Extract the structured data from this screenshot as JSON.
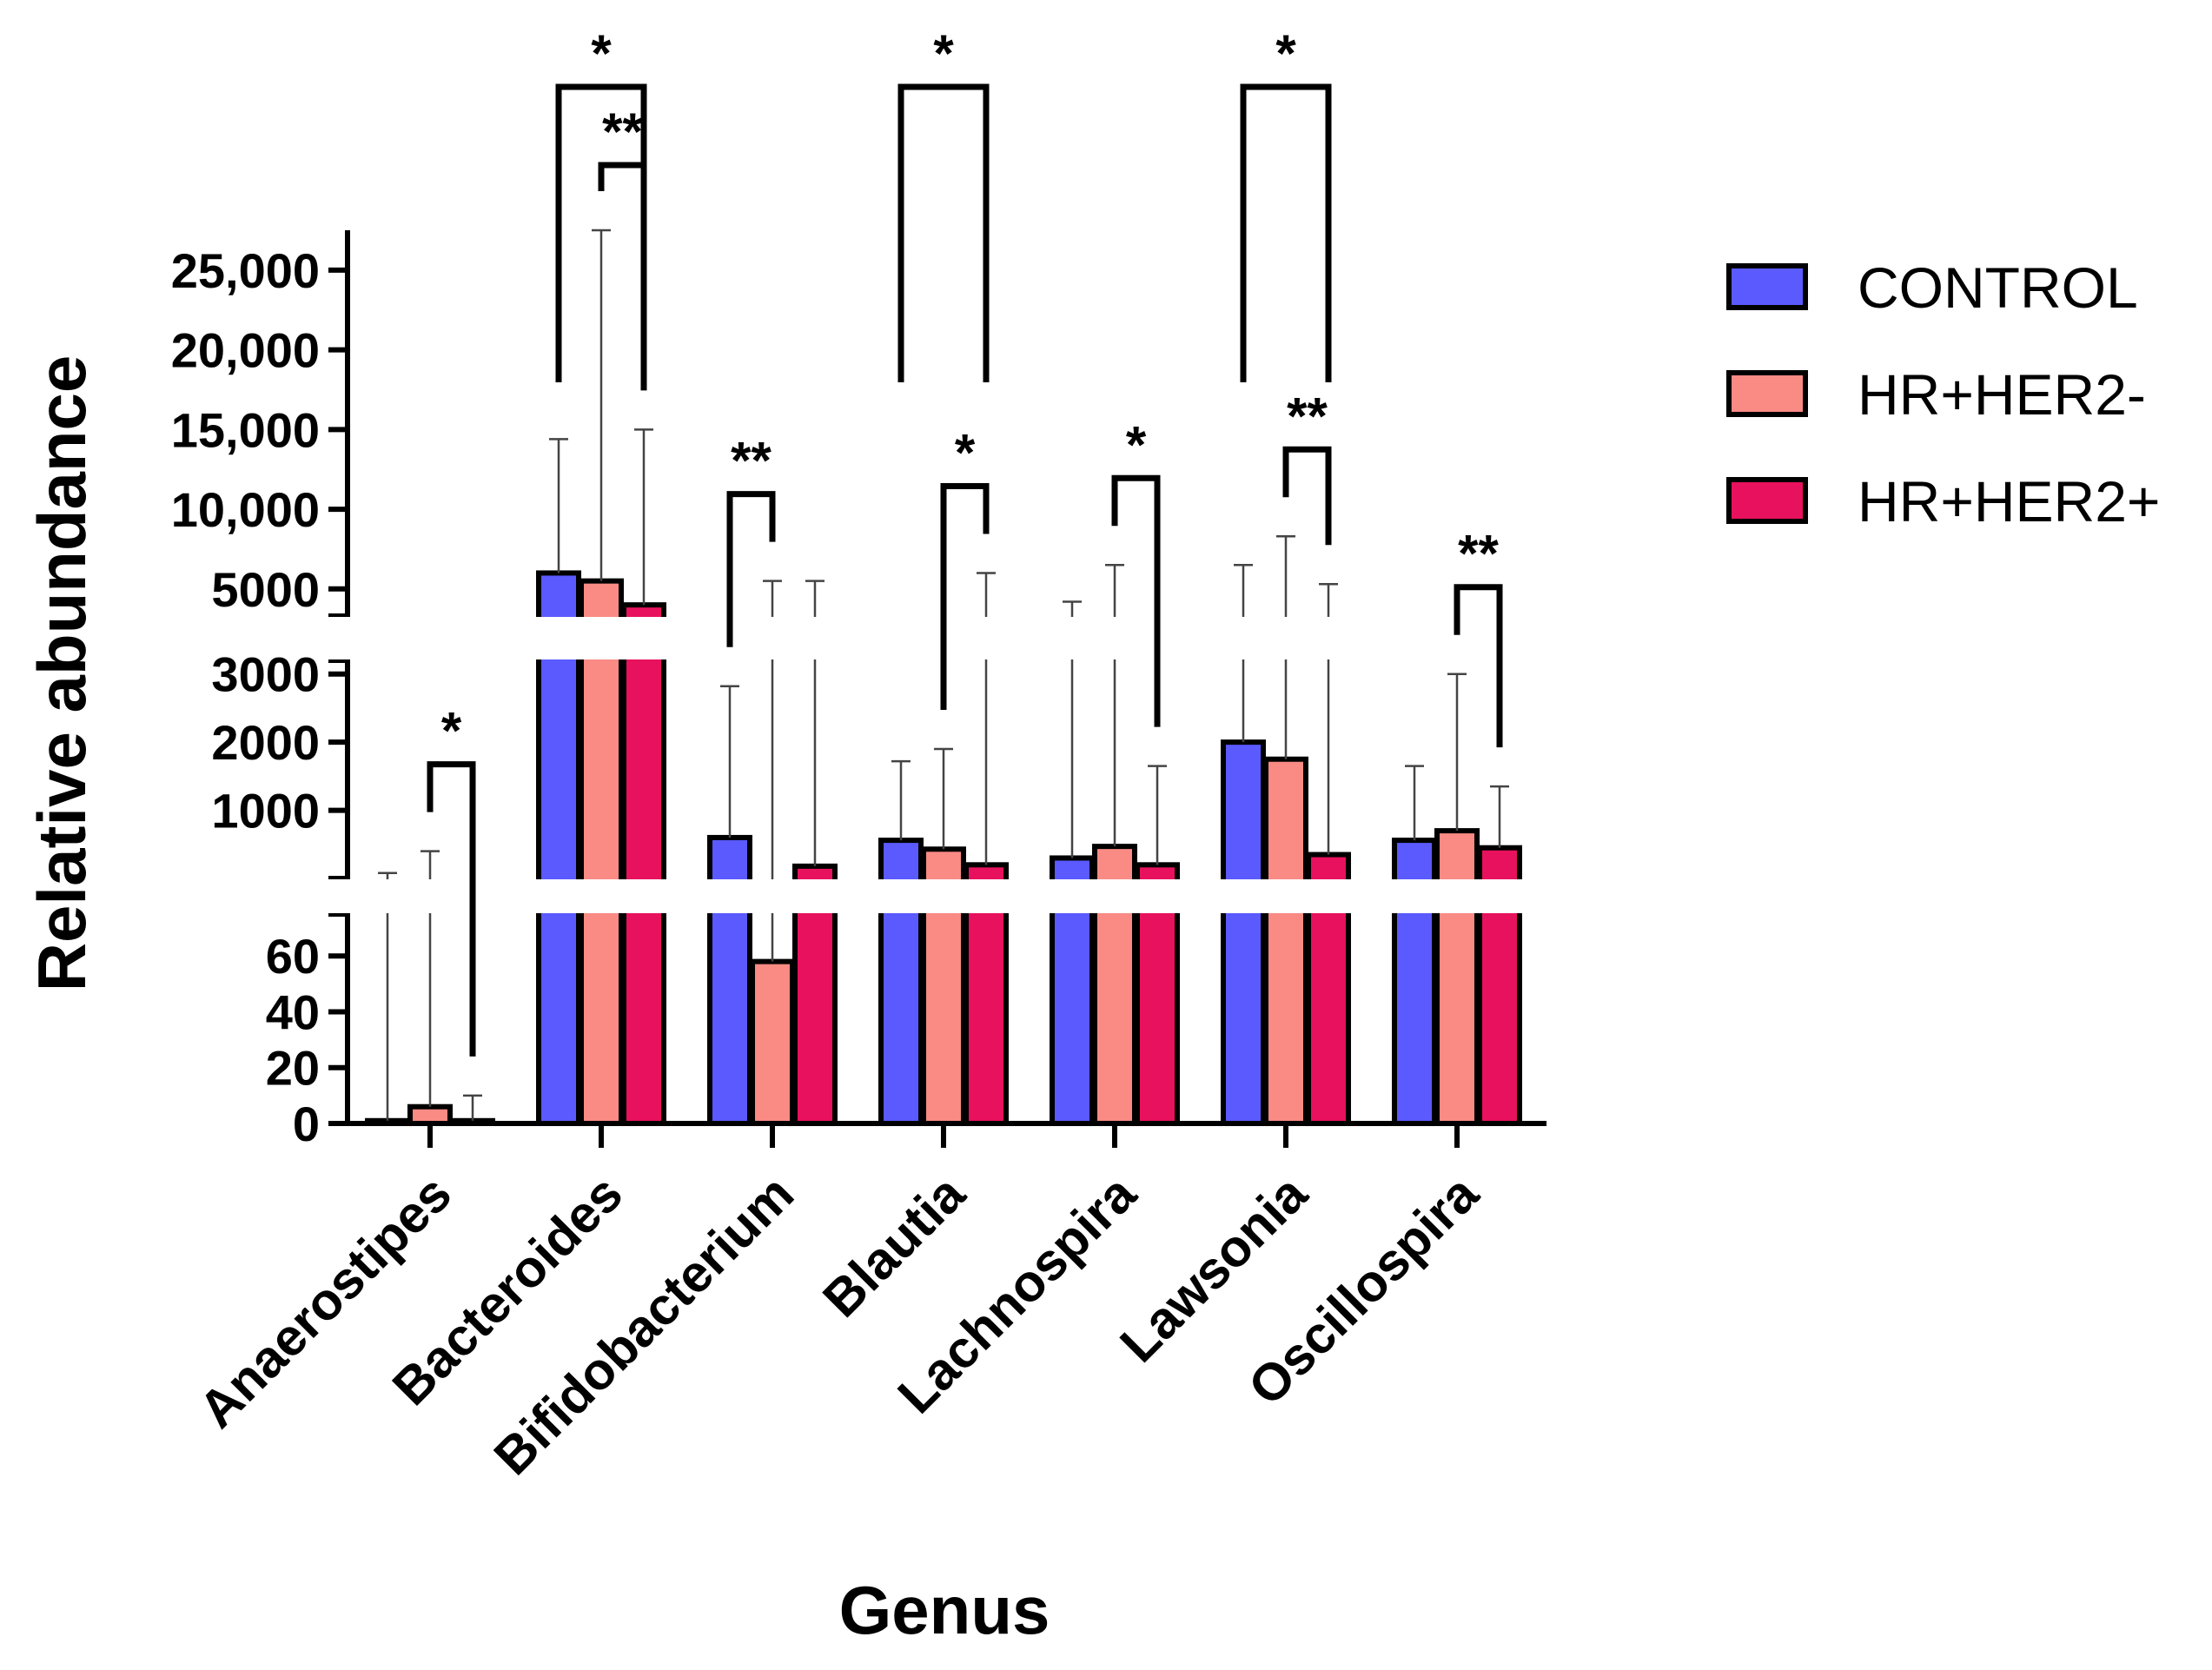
{
  "chart_data": {
    "type": "bar",
    "xlabel": "Genus",
    "ylabel": "Relative abundance",
    "categories": [
      "Anaerostipes",
      "Bacteroides",
      "Bifidobacterium",
      "Blautia",
      "Lachnospira",
      "Lawsonia",
      "Oscillospira"
    ],
    "series": [
      {
        "name": "CONTROL",
        "color": "#5a5aff",
        "values": [
          1,
          6000,
          600,
          560,
          300,
          2000,
          560
        ],
        "error_upper": [
          80,
          14400,
          2820,
          1720,
          4200,
          6500,
          1650
        ]
      },
      {
        "name": "HR+HER2-",
        "color": "#f98a84",
        "values": [
          6,
          5500,
          58,
          430,
          470,
          1750,
          700
        ],
        "error_upper": [
          400,
          27800,
          5500,
          1900,
          6500,
          8300,
          3000
        ]
      },
      {
        "name": "HR+HER2+",
        "color": "#e8115d",
        "values": [
          1,
          4000,
          180,
          200,
          200,
          350,
          450
        ],
        "error_upper": [
          10,
          15000,
          5500,
          6000,
          1650,
          5300,
          1350
        ]
      }
    ],
    "y_segments": [
      {
        "range": [
          0,
          75
        ],
        "ticks": [
          0,
          20,
          40,
          60
        ],
        "tick_labels": [
          "0",
          "20",
          "40",
          "60"
        ]
      },
      {
        "range": [
          0,
          3200
        ],
        "ticks": [
          1000,
          2000,
          3000
        ],
        "tick_labels": [
          "1000",
          "2000",
          "3000"
        ]
      },
      {
        "range": [
          3300,
          27500
        ],
        "ticks": [
          5000,
          10000,
          15000,
          20000,
          25000
        ],
        "tick_labels": [
          "5000",
          "10,000",
          "15,000",
          "20,000",
          "25,000"
        ]
      }
    ],
    "significance": [
      {
        "category": "Anaerostipes",
        "from": "HR+HER2-",
        "to": "HR+HER2+",
        "label": "*"
      },
      {
        "category": "Bacteroides",
        "from": "CONTROL",
        "to": "HR+HER2+",
        "label": "*"
      },
      {
        "category": "Bacteroides",
        "from": "HR+HER2-",
        "to": "HR+HER2+",
        "label": "**"
      },
      {
        "category": "Bifidobacterium",
        "from": "CONTROL",
        "to": "HR+HER2-",
        "label": "**"
      },
      {
        "category": "Blautia",
        "from": "CONTROL",
        "to": "HR+HER2+",
        "label": "*"
      },
      {
        "category": "Blautia",
        "from": "HR+HER2-",
        "to": "HR+HER2+",
        "label": "*"
      },
      {
        "category": "Lachnospira",
        "from": "HR+HER2-",
        "to": "HR+HER2+",
        "label": "*"
      },
      {
        "category": "Lawsonia",
        "from": "CONTROL",
        "to": "HR+HER2+",
        "label": "*"
      },
      {
        "category": "Lawsonia",
        "from": "HR+HER2-",
        "to": "HR+HER2+",
        "label": "**"
      },
      {
        "category": "Oscillospira",
        "from": "HR+HER2-",
        "to": "HR+HER2+",
        "label": "**"
      }
    ],
    "legend_position": "right"
  }
}
